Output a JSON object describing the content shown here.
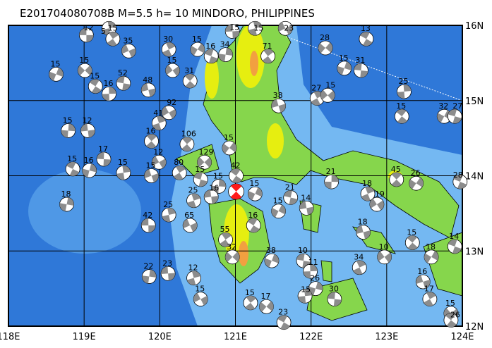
{
  "title": "E201704080708B M=5.5 h= 10 MINDORO, PHILIPPINES",
  "map": {
    "lon_range": [
      118,
      124
    ],
    "lat_range": [
      12,
      16
    ],
    "lon_labels": [
      "118E",
      "119E",
      "120E",
      "121E",
      "122E",
      "123E",
      "124E"
    ],
    "lat_labels": [
      "16N",
      "15N",
      "14N",
      "13N",
      "12N"
    ],
    "colors": {
      "deep_ocean": "#2f78d8",
      "shallow_ocean": "#74b8f2",
      "land": "#86d64c",
      "highland": "#e6ee10",
      "peak": "#f2a040",
      "mechanism_fill": "#8c8c8c",
      "main_event": "#ff1a1a"
    }
  },
  "main_event": {
    "lon": 121.01,
    "lat": 13.79,
    "magnitude": "5.5",
    "depth": "10"
  },
  "events": [
    {
      "lon": 119.03,
      "lat": 15.87,
      "depth": "12"
    },
    {
      "lon": 119.33,
      "lat": 15.96,
      "depth": "15"
    },
    {
      "lon": 119.59,
      "lat": 15.66,
      "depth": "35"
    },
    {
      "lon": 119.38,
      "lat": 15.82,
      "depth": "5"
    },
    {
      "lon": 119.01,
      "lat": 15.4,
      "depth": "15"
    },
    {
      "lon": 119.15,
      "lat": 15.19,
      "depth": "15"
    },
    {
      "lon": 118.63,
      "lat": 15.35,
      "depth": "15"
    },
    {
      "lon": 119.52,
      "lat": 15.23,
      "depth": "52"
    },
    {
      "lon": 119.33,
      "lat": 15.09,
      "depth": "16"
    },
    {
      "lon": 119.85,
      "lat": 15.14,
      "depth": "48"
    },
    {
      "lon": 120.12,
      "lat": 15.68,
      "depth": "30"
    },
    {
      "lon": 120.17,
      "lat": 15.4,
      "depth": "15"
    },
    {
      "lon": 120.4,
      "lat": 15.26,
      "depth": "31"
    },
    {
      "lon": 120.5,
      "lat": 15.68,
      "depth": "15"
    },
    {
      "lon": 120.68,
      "lat": 15.59,
      "depth": "16"
    },
    {
      "lon": 120.87,
      "lat": 15.61,
      "depth": "34"
    },
    {
      "lon": 120.96,
      "lat": 15.92,
      "depth": "15"
    },
    {
      "lon": 121.26,
      "lat": 15.96,
      "depth": "15"
    },
    {
      "lon": 121.66,
      "lat": 15.96,
      "depth": "23"
    },
    {
      "lon": 121.43,
      "lat": 15.59,
      "depth": "71"
    },
    {
      "lon": 122.19,
      "lat": 15.7,
      "depth": "28"
    },
    {
      "lon": 122.73,
      "lat": 15.82,
      "depth": "13"
    },
    {
      "lon": 122.44,
      "lat": 15.43,
      "depth": "15"
    },
    {
      "lon": 122.66,
      "lat": 15.4,
      "depth": "31"
    },
    {
      "lon": 123.23,
      "lat": 15.12,
      "depth": "25"
    },
    {
      "lon": 121.57,
      "lat": 14.93,
      "depth": "38"
    },
    {
      "lon": 122.08,
      "lat": 15.03,
      "depth": "27"
    },
    {
      "lon": 122.22,
      "lat": 15.07,
      "depth": "15"
    },
    {
      "lon": 123.2,
      "lat": 14.79,
      "depth": "15"
    },
    {
      "lon": 123.76,
      "lat": 14.79,
      "depth": "32"
    },
    {
      "lon": 123.9,
      "lat": 14.79,
      "depth": "27"
    },
    {
      "lon": 118.79,
      "lat": 14.6,
      "depth": "15"
    },
    {
      "lon": 119.05,
      "lat": 14.6,
      "depth": "12"
    },
    {
      "lon": 119.99,
      "lat": 14.7,
      "depth": "41"
    },
    {
      "lon": 120.12,
      "lat": 14.84,
      "depth": "92"
    },
    {
      "lon": 120.36,
      "lat": 14.42,
      "depth": "106"
    },
    {
      "lon": 120.92,
      "lat": 14.37,
      "depth": "15"
    },
    {
      "lon": 118.85,
      "lat": 14.09,
      "depth": "15"
    },
    {
      "lon": 119.07,
      "lat": 14.07,
      "depth": "16"
    },
    {
      "lon": 119.26,
      "lat": 14.22,
      "depth": "17"
    },
    {
      "lon": 119.52,
      "lat": 14.04,
      "depth": "15"
    },
    {
      "lon": 119.89,
      "lat": 14.0,
      "depth": "15"
    },
    {
      "lon": 120.26,
      "lat": 14.04,
      "depth": "80"
    },
    {
      "lon": 120.59,
      "lat": 14.18,
      "depth": "129"
    },
    {
      "lon": 121.01,
      "lat": 14.0,
      "depth": "42"
    },
    {
      "lon": 121.26,
      "lat": 13.76,
      "depth": "15"
    },
    {
      "lon": 121.73,
      "lat": 13.71,
      "depth": "21"
    },
    {
      "lon": 122.27,
      "lat": 13.92,
      "depth": "21"
    },
    {
      "lon": 121.94,
      "lat": 13.57,
      "depth": "14"
    },
    {
      "lon": 122.75,
      "lat": 13.76,
      "depth": "18"
    },
    {
      "lon": 122.87,
      "lat": 13.62,
      "depth": "19"
    },
    {
      "lon": 123.13,
      "lat": 13.95,
      "depth": "45"
    },
    {
      "lon": 123.39,
      "lat": 13.9,
      "depth": "26"
    },
    {
      "lon": 123.97,
      "lat": 13.92,
      "depth": "28"
    },
    {
      "lon": 118.77,
      "lat": 13.62,
      "depth": "18"
    },
    {
      "lon": 119.85,
      "lat": 13.34,
      "depth": "42"
    },
    {
      "lon": 120.12,
      "lat": 13.48,
      "depth": "25"
    },
    {
      "lon": 120.4,
      "lat": 13.34,
      "depth": "65"
    },
    {
      "lon": 120.87,
      "lat": 13.15,
      "depth": "55"
    },
    {
      "lon": 120.96,
      "lat": 12.92,
      "depth": "32"
    },
    {
      "lon": 121.24,
      "lat": 13.34,
      "depth": "16"
    },
    {
      "lon": 121.48,
      "lat": 12.87,
      "depth": "38"
    },
    {
      "lon": 121.9,
      "lat": 12.87,
      "depth": "10"
    },
    {
      "lon": 121.99,
      "lat": 12.73,
      "depth": "11"
    },
    {
      "lon": 122.69,
      "lat": 13.25,
      "depth": "18"
    },
    {
      "lon": 122.64,
      "lat": 12.78,
      "depth": "34"
    },
    {
      "lon": 122.97,
      "lat": 12.92,
      "depth": "10"
    },
    {
      "lon": 123.34,
      "lat": 13.11,
      "depth": "15"
    },
    {
      "lon": 123.59,
      "lat": 12.92,
      "depth": "18"
    },
    {
      "lon": 123.9,
      "lat": 13.06,
      "depth": "14"
    },
    {
      "lon": 119.86,
      "lat": 12.66,
      "depth": "22"
    },
    {
      "lon": 120.11,
      "lat": 12.7,
      "depth": "23"
    },
    {
      "lon": 120.45,
      "lat": 12.64,
      "depth": "12"
    },
    {
      "lon": 120.54,
      "lat": 12.36,
      "depth": "15"
    },
    {
      "lon": 121.2,
      "lat": 12.31,
      "depth": "15"
    },
    {
      "lon": 121.41,
      "lat": 12.26,
      "depth": "17"
    },
    {
      "lon": 121.64,
      "lat": 12.05,
      "depth": "23"
    },
    {
      "lon": 122.06,
      "lat": 12.5,
      "depth": "26"
    },
    {
      "lon": 122.31,
      "lat": 12.36,
      "depth": "30"
    },
    {
      "lon": 121.92,
      "lat": 12.4,
      "depth": "15"
    },
    {
      "lon": 123.48,
      "lat": 12.59,
      "depth": "16"
    },
    {
      "lon": 123.57,
      "lat": 12.36,
      "depth": "17"
    },
    {
      "lon": 123.85,
      "lat": 12.17,
      "depth": "15"
    },
    {
      "lon": 123.85,
      "lat": 12.08,
      "depth": "26"
    },
    {
      "lon": 121.57,
      "lat": 13.53,
      "depth": "15"
    },
    {
      "lon": 120.54,
      "lat": 13.95,
      "depth": "15"
    },
    {
      "lon": 120.78,
      "lat": 13.86,
      "depth": "15"
    },
    {
      "lon": 120.68,
      "lat": 13.72,
      "depth": "16"
    },
    {
      "lon": 120.45,
      "lat": 13.67,
      "depth": "25"
    },
    {
      "lon": 119.99,
      "lat": 14.18,
      "depth": "12"
    },
    {
      "lon": 119.89,
      "lat": 14.46,
      "depth": "16"
    }
  ]
}
